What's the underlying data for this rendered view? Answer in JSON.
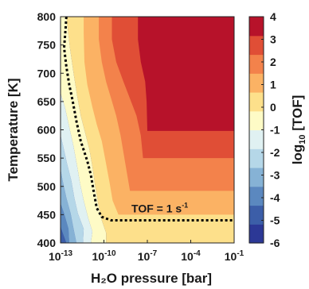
{
  "chart_data": {
    "type": "heatmap",
    "subtype": "filled-contour",
    "xlabel": "H₂O pressure [bar]",
    "ylabel": "Temperature [K]",
    "x_scale": "log",
    "x_range_bar": [
      1e-13,
      0.1
    ],
    "y_range": [
      400,
      800
    ],
    "x_tick_labels": [
      {
        "base": "10",
        "exp": "-13"
      },
      {
        "base": "10",
        "exp": "-10"
      },
      {
        "base": "10",
        "exp": "-7"
      },
      {
        "base": "10",
        "exp": "-4"
      },
      {
        "base": "10",
        "exp": "-1"
      }
    ],
    "x_tick_exponents": [
      -13,
      -10,
      -7,
      -4,
      -1
    ],
    "y_ticks": [
      400,
      450,
      500,
      550,
      600,
      650,
      700,
      750,
      800
    ],
    "colorbar": {
      "label_base": "log",
      "label_sub": "10",
      "label_rest": " [TOF]",
      "range": [
        -6,
        4
      ],
      "ticks": [
        4,
        3,
        2,
        1,
        0,
        -1,
        -2,
        -3,
        -4,
        -5,
        -6
      ],
      "colors": [
        "#2c3896",
        "#3c5ea8",
        "#5b88bf",
        "#86b2d5",
        "#b5d7e8",
        "#e0f1f2",
        "#fefbc6",
        "#fde08b",
        "#fbb264",
        "#f3824b",
        "#e04e36",
        "#b7122a"
      ]
    },
    "annotation": {
      "base": "TOF = 1 s",
      "exp": "-1"
    },
    "contour_levels": [
      -6,
      -5,
      -4,
      -3,
      -2,
      -1,
      0,
      1,
      2,
      3,
      4
    ],
    "regions_low_to_high": [
      {
        "level_min": -6,
        "level_max": -5,
        "boundary": [
          [
            -13.0,
            400
          ],
          [
            -12.6,
            400
          ],
          [
            -12.95,
            425
          ],
          [
            -13.0,
            432
          ]
        ]
      },
      {
        "level_min": -5,
        "level_max": -4,
        "boundary": [
          [
            -13.0,
            400
          ],
          [
            -12.4,
            400
          ],
          [
            -12.45,
            425
          ],
          [
            -12.75,
            452
          ],
          [
            -13.0,
            470
          ],
          [
            -13.0,
            432
          ],
          [
            -12.95,
            425
          ],
          [
            -12.6,
            400
          ]
        ]
      },
      {
        "level_min": -4,
        "level_max": -3,
        "boundary": [
          [
            -13.0,
            400
          ],
          [
            -11.9,
            400
          ],
          [
            -12.1,
            425
          ],
          [
            -12.3,
            452
          ],
          [
            -12.6,
            480
          ],
          [
            -12.85,
            510
          ],
          [
            -13.0,
            530
          ],
          [
            -13.0,
            470
          ],
          [
            -12.75,
            452
          ],
          [
            -12.45,
            425
          ],
          [
            -12.4,
            400
          ]
        ]
      },
      {
        "level_min": -3,
        "level_max": -2,
        "boundary": [
          [
            -13.0,
            400
          ],
          [
            -11.45,
            400
          ],
          [
            -11.4,
            425
          ],
          [
            -11.8,
            452
          ],
          [
            -12.05,
            480
          ],
          [
            -12.25,
            510
          ],
          [
            -12.55,
            540
          ],
          [
            -12.85,
            575
          ],
          [
            -13.0,
            590
          ],
          [
            -13.0,
            530
          ],
          [
            -12.85,
            510
          ],
          [
            -12.6,
            480
          ],
          [
            -12.3,
            452
          ],
          [
            -12.1,
            425
          ],
          [
            -11.9,
            400
          ]
        ]
      },
      {
        "level_min": -2,
        "level_max": -1,
        "boundary": [
          [
            -13.0,
            400
          ],
          [
            -10.9,
            400
          ],
          [
            -10.8,
            420
          ],
          [
            -11.1,
            445
          ],
          [
            -11.4,
            475
          ],
          [
            -11.65,
            505
          ],
          [
            -11.85,
            535
          ],
          [
            -12.1,
            570
          ],
          [
            -12.4,
            605
          ],
          [
            -12.7,
            640
          ],
          [
            -13.0,
            665
          ],
          [
            -13.0,
            590
          ],
          [
            -12.85,
            575
          ],
          [
            -12.55,
            540
          ],
          [
            -12.25,
            510
          ],
          [
            -12.05,
            480
          ],
          [
            -11.8,
            452
          ],
          [
            -11.4,
            425
          ],
          [
            -11.45,
            400
          ]
        ]
      },
      {
        "level_min": -1,
        "level_max": 0,
        "boundary": [
          [
            -13.0,
            400
          ],
          [
            -9.85,
            400
          ],
          [
            -9.85,
            418
          ],
          [
            -10.15,
            440
          ],
          [
            -10.4,
            470
          ],
          [
            -10.6,
            500
          ],
          [
            -10.8,
            535
          ],
          [
            -11.0,
            565
          ],
          [
            -11.3,
            595
          ],
          [
            -11.6,
            625
          ],
          [
            -11.85,
            660
          ],
          [
            -12.1,
            700
          ],
          [
            -12.35,
            745
          ],
          [
            -12.55,
            790
          ],
          [
            -12.6,
            800
          ],
          [
            -13.0,
            800
          ],
          [
            -13.0,
            665
          ],
          [
            -12.7,
            640
          ],
          [
            -12.4,
            605
          ],
          [
            -12.1,
            570
          ],
          [
            -11.85,
            535
          ],
          [
            -11.65,
            505
          ],
          [
            -11.4,
            475
          ],
          [
            -11.1,
            445
          ],
          [
            -10.8,
            420
          ],
          [
            -10.9,
            400
          ]
        ]
      },
      {
        "level_min": 0,
        "level_max": 1,
        "boundary": [
          [
            -9.85,
            400
          ],
          [
            -1.0,
            400
          ],
          [
            -1.0,
            800
          ],
          [
            -12.6,
            800
          ],
          [
            -12.55,
            790
          ],
          [
            -12.35,
            745
          ],
          [
            -12.1,
            700
          ],
          [
            -11.85,
            660
          ],
          [
            -11.6,
            625
          ],
          [
            -11.3,
            595
          ],
          [
            -11.0,
            565
          ],
          [
            -10.8,
            535
          ],
          [
            -10.6,
            500
          ],
          [
            -10.4,
            470
          ],
          [
            -10.15,
            440
          ],
          [
            -9.85,
            418
          ]
        ]
      },
      {
        "level_min": 1,
        "level_max": 2,
        "boundary": [
          [
            -9.0,
            450
          ],
          [
            -1.0,
            450
          ],
          [
            -1.0,
            800
          ],
          [
            -11.4,
            800
          ],
          [
            -11.4,
            770
          ],
          [
            -11.35,
            720
          ],
          [
            -11.15,
            680
          ],
          [
            -10.8,
            640
          ],
          [
            -10.5,
            610
          ],
          [
            -10.15,
            580
          ],
          [
            -9.85,
            540
          ],
          [
            -9.6,
            505
          ],
          [
            -9.4,
            475
          ]
        ]
      },
      {
        "level_min": 2,
        "level_max": 3,
        "boundary": [
          [
            -8.2,
            492
          ],
          [
            -1.0,
            492
          ],
          [
            -1.0,
            800
          ],
          [
            -10.35,
            800
          ],
          [
            -10.35,
            760
          ],
          [
            -10.15,
            720
          ],
          [
            -9.85,
            685
          ],
          [
            -9.5,
            655
          ],
          [
            -9.15,
            625
          ],
          [
            -8.85,
            590
          ],
          [
            -8.55,
            545
          ]
        ]
      },
      {
        "level_min": 3,
        "level_max": 4,
        "boundary": [
          [
            -7.3,
            550
          ],
          [
            -1.0,
            550
          ],
          [
            -1.0,
            800
          ],
          [
            -9.45,
            800
          ],
          [
            -9.45,
            760
          ],
          [
            -9.15,
            720
          ],
          [
            -8.65,
            685
          ],
          [
            -8.2,
            655
          ],
          [
            -7.75,
            625
          ],
          [
            -7.45,
            590
          ]
        ]
      },
      {
        "level_min": 4,
        "level_max": 4,
        "boundary": [
          [
            -7.0,
            598
          ],
          [
            -1.0,
            598
          ],
          [
            -1.0,
            800
          ],
          [
            -7.65,
            800
          ],
          [
            -7.65,
            760
          ],
          [
            -7.45,
            720
          ],
          [
            -7.15,
            685
          ],
          [
            -7.05,
            650
          ]
        ]
      }
    ],
    "tof_1_contour": [
      [
        -13.0,
        456
      ],
      [
        -12.25,
        456
      ],
      [
        -10.25,
        456
      ],
      [
        -9.05,
        456
      ],
      [
        -8.85,
        456
      ],
      [
        -1.0,
        456
      ]
    ],
    "tof_1_contour_path": [
      [
        -12.6,
        800
      ],
      [
        -12.65,
        780
      ],
      [
        -12.75,
        745
      ],
      [
        -12.6,
        712
      ],
      [
        -12.4,
        680
      ],
      [
        -12.15,
        650
      ],
      [
        -11.9,
        615
      ],
      [
        -11.6,
        580
      ],
      [
        -11.15,
        545
      ],
      [
        -10.9,
        520
      ],
      [
        -10.7,
        490
      ],
      [
        -10.5,
        462
      ],
      [
        -10.15,
        446
      ],
      [
        -9.5,
        440
      ],
      [
        -8.0,
        440
      ],
      [
        -1.0,
        440
      ]
    ]
  }
}
